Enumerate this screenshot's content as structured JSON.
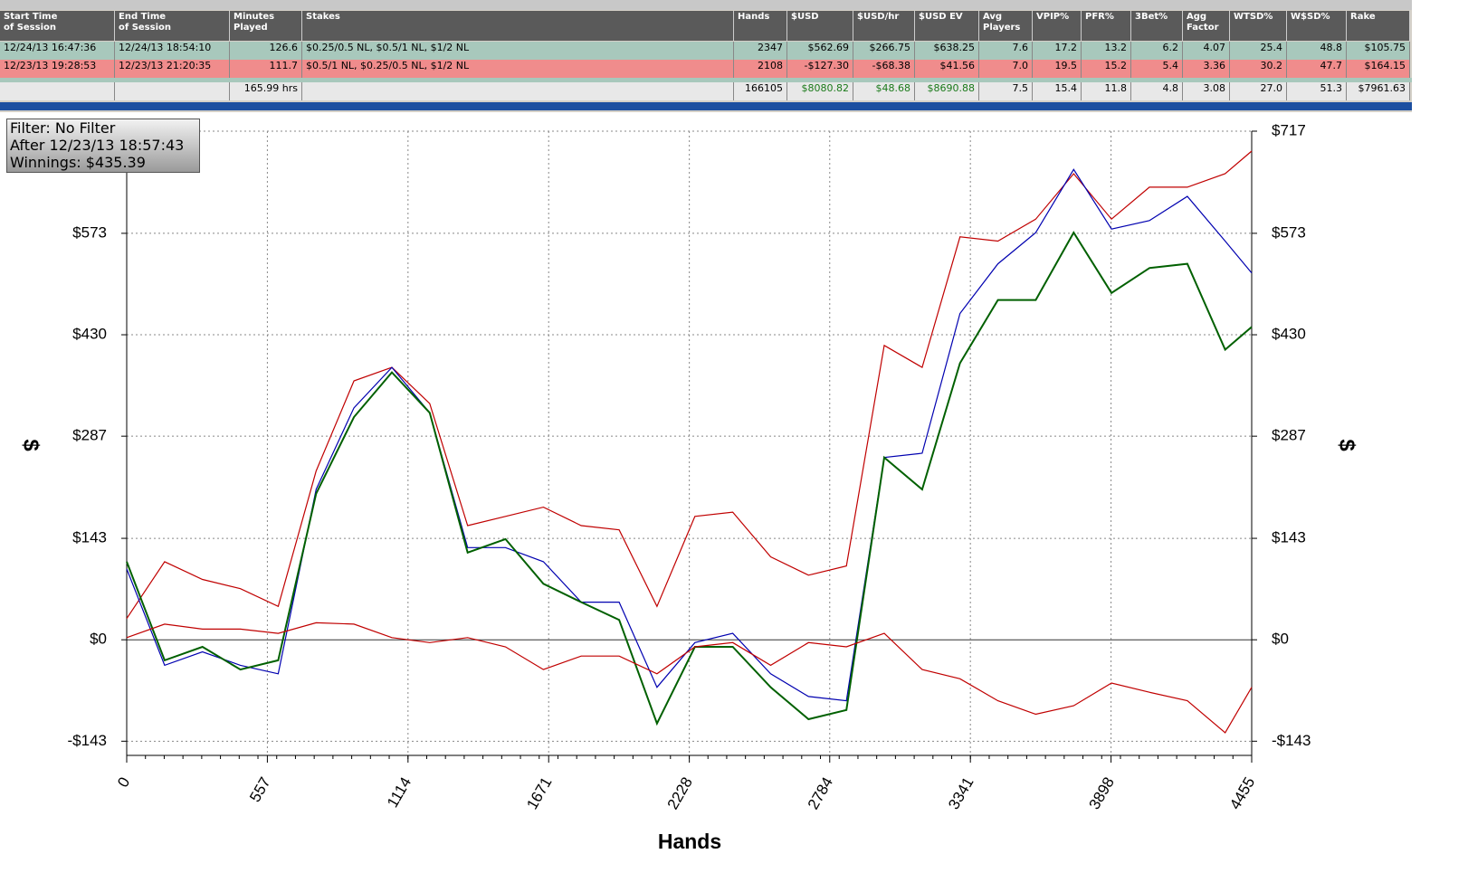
{
  "table": {
    "headers": [
      "Start Time\nof Session",
      "End Time\nof Session",
      "Minutes\nPlayed",
      "Stakes",
      "Hands",
      "$USD",
      "$USD/hr",
      "$USD EV",
      "Avg\nPlayers",
      "VPIP%",
      "PFR%",
      "3Bet%",
      "Agg\nFactor",
      "WTSD%",
      "W$SD%",
      "Rake"
    ],
    "rows": [
      [
        "12/24/13 16:47:36",
        "12/24/13 18:54:10",
        "126.6",
        "$0.25/0.5 NL, $0.5/1 NL, $1/2 NL",
        "2347",
        "$562.69",
        "$266.75",
        "$638.25",
        "7.6",
        "17.2",
        "13.2",
        "6.2",
        "4.07",
        "25.4",
        "48.8",
        "$105.75"
      ],
      [
        "12/23/13 19:28:53",
        "12/23/13 21:20:35",
        "111.7",
        "$0.5/1 NL, $0.25/0.5 NL, $1/2 NL",
        "2108",
        "-$127.30",
        "-$68.38",
        "$41.56",
        "7.0",
        "19.5",
        "15.2",
        "5.4",
        "3.36",
        "30.2",
        "47.7",
        "$164.15"
      ]
    ],
    "total": [
      null,
      null,
      "165.99 hrs",
      null,
      "166105",
      "$8080.82",
      "$48.68",
      "$8690.88",
      "7.5",
      "15.4",
      "11.8",
      "4.8",
      "3.08",
      "27.0",
      "51.3",
      "$7961.63"
    ]
  },
  "info": {
    "filter": "Filter: No Filter",
    "after": "After 12/23/13 18:57:43",
    "winnings": "Winnings: $435.39"
  },
  "chart_data": {
    "type": "line",
    "x_label": "Hands",
    "y_label": "$",
    "grid": true,
    "x": [
      0,
      150,
      300,
      450,
      600,
      750,
      900,
      1050,
      1200,
      1350,
      1500,
      1650,
      1800,
      1950,
      2100,
      2250,
      2400,
      2550,
      2700,
      2850,
      3000,
      3150,
      3300,
      3450,
      3600,
      3750,
      3900,
      4050,
      4200,
      4350,
      4455
    ],
    "xlim": [
      0,
      4455
    ],
    "xticks": [
      0,
      557,
      1114,
      1671,
      2228,
      2784,
      3341,
      3898,
      4455
    ],
    "ylim": [
      -163,
      717
    ],
    "yticks": [
      {
        "value": -143,
        "label": "-$143"
      },
      {
        "value": 0,
        "label": "$0"
      },
      {
        "value": 143,
        "label": "$143"
      },
      {
        "value": 287,
        "label": "$287"
      },
      {
        "value": 430,
        "label": "$430"
      },
      {
        "value": 573,
        "label": "$573"
      },
      {
        "value": 717,
        "label": "$717"
      }
    ],
    "series": [
      {
        "color": "#c00000",
        "values": [
          30,
          110,
          85,
          72,
          47,
          238,
          365,
          384,
          333,
          161,
          174,
          187,
          161,
          155,
          47,
          174,
          180,
          117,
          91,
          104,
          415,
          384,
          568,
          562,
          593,
          657,
          593,
          638,
          638,
          657,
          689
        ]
      },
      {
        "color": "#0000b0",
        "values": [
          100,
          -36,
          -17,
          -36,
          -48,
          212,
          327,
          384,
          320,
          130,
          130,
          110,
          53,
          53,
          -67,
          -4,
          9,
          -48,
          -80,
          -86,
          257,
          263,
          460,
          530,
          574,
          663,
          579,
          591,
          625,
          562,
          517
        ]
      },
      {
        "color": "#006000",
        "values": [
          110,
          -29,
          -10,
          -42,
          -29,
          206,
          314,
          377,
          320,
          123,
          142,
          79,
          53,
          28,
          -118,
          -10,
          -10,
          -67,
          -112,
          -99,
          257,
          212,
          390,
          479,
          479,
          574,
          489,
          524,
          530,
          409,
          441
        ]
      },
      {
        "color": "#c00000",
        "values": [
          3,
          22,
          15,
          15,
          9,
          24,
          22,
          3,
          -4,
          3,
          -10,
          -42,
          -23,
          -23,
          -48,
          -10,
          -4,
          -36,
          -4,
          -10,
          9,
          -42,
          -55,
          -86,
          -105,
          -93,
          -61,
          -74,
          -86,
          -131,
          -67
        ]
      }
    ]
  }
}
